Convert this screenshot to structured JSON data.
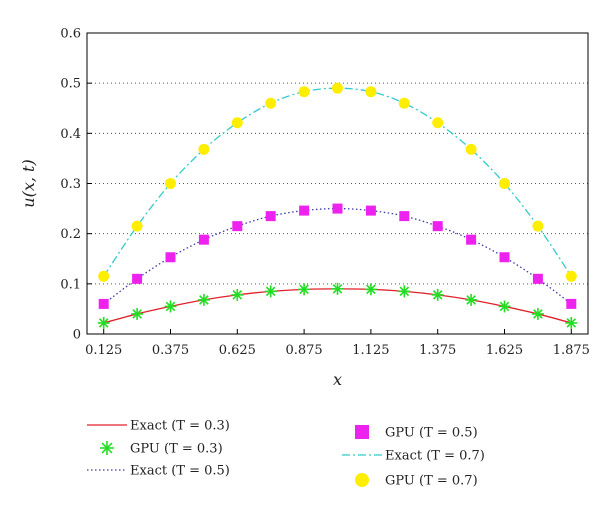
{
  "chart_data": {
    "type": "line",
    "xlabel": "x",
    "ylabel": "u(x, t)",
    "xlim": [
      0.0625,
      1.9375
    ],
    "ylim": [
      0,
      0.6
    ],
    "x_ticks": [
      "0.125",
      "0.375",
      "0.625",
      "0.875",
      "1.125",
      "1.375",
      "1.625",
      "1.875"
    ],
    "y_ticks": [
      "0",
      "0.1",
      "0.2",
      "0.3",
      "0.4",
      "0.5",
      "0.6"
    ],
    "grid": "horizontal dotted",
    "x": [
      0.125,
      0.25,
      0.375,
      0.5,
      0.625,
      0.75,
      0.875,
      1.0,
      1.125,
      1.25,
      1.375,
      1.5,
      1.625,
      1.75,
      1.875
    ],
    "series": [
      {
        "name": "Exact (T = 0.3)",
        "kind": "line",
        "style": "solid",
        "color": "#e0202a",
        "values": [
          0.022,
          0.04,
          0.055,
          0.068,
          0.078,
          0.085,
          0.089,
          0.09,
          0.089,
          0.085,
          0.078,
          0.068,
          0.055,
          0.04,
          0.022
        ]
      },
      {
        "name": "GPU (T = 0.3)",
        "kind": "marker",
        "marker": "asterisk",
        "color": "#22dd22",
        "values": [
          0.022,
          0.04,
          0.055,
          0.068,
          0.078,
          0.085,
          0.089,
          0.09,
          0.089,
          0.085,
          0.078,
          0.068,
          0.055,
          0.04,
          0.022
        ]
      },
      {
        "name": "Exact (T = 0.5)",
        "kind": "line",
        "style": "dotted",
        "color": "#3a3aa8",
        "values": [
          0.06,
          0.11,
          0.153,
          0.188,
          0.215,
          0.235,
          0.246,
          0.25,
          0.246,
          0.235,
          0.215,
          0.188,
          0.153,
          0.11,
          0.06
        ]
      },
      {
        "name": "GPU (T = 0.5)",
        "kind": "marker",
        "marker": "square",
        "color": "#ee22ee",
        "values": [
          0.06,
          0.11,
          0.153,
          0.188,
          0.215,
          0.235,
          0.246,
          0.25,
          0.246,
          0.235,
          0.215,
          0.188,
          0.153,
          0.11,
          0.06
        ]
      },
      {
        "name": "Exact (T = 0.7)",
        "kind": "line",
        "style": "dashdot",
        "color": "#33cccc",
        "values": [
          0.115,
          0.215,
          0.3,
          0.368,
          0.421,
          0.46,
          0.483,
          0.49,
          0.483,
          0.46,
          0.421,
          0.368,
          0.3,
          0.215,
          0.115
        ]
      },
      {
        "name": "GPU (T = 0.7)",
        "kind": "marker",
        "marker": "circle",
        "color": "#ffee00",
        "values": [
          0.115,
          0.215,
          0.3,
          0.368,
          0.421,
          0.46,
          0.483,
          0.49,
          0.483,
          0.46,
          0.421,
          0.368,
          0.3,
          0.215,
          0.115
        ]
      }
    ],
    "legend": {
      "placement": "bottom",
      "left": [
        "Exact (T = 0.3)",
        "GPU (T = 0.3)",
        "Exact (T = 0.5)"
      ],
      "right": [
        "GPU (T = 0.5)",
        "Exact (T = 0.7)",
        "GPU (T = 0.7)"
      ]
    }
  }
}
